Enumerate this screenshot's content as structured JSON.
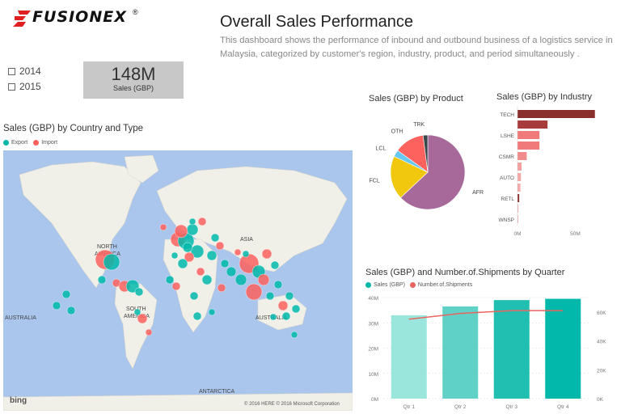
{
  "brand": {
    "name": "FUSIONEX",
    "reg": "®"
  },
  "header": {
    "title": "Overall Sales Performance",
    "subtitle": "This dashboard shows the performance of inbound and outbound business of a logistics service in Malaysia, categorized by customer's region, industry, product, and period simultaneously ."
  },
  "slicer": {
    "items": [
      "2014",
      "2015"
    ]
  },
  "kpi": {
    "value": "148M",
    "label": "Sales (GBP)"
  },
  "map": {
    "title": "Sales (GBP) by Country and Type",
    "legend": [
      {
        "name": "Export",
        "color": "#01b8aa"
      },
      {
        "name": "Import",
        "color": "#fd625e"
      }
    ],
    "labels": {
      "north_america": [
        "NORTH",
        "AMERICA"
      ],
      "south_america": [
        "SOUTH",
        "AMERICA"
      ],
      "asia": "ASIA",
      "australia_left": "AUSTRALIA",
      "australia_right": "AUSTRALIA",
      "antarctica": "ANTARCTICA"
    },
    "attribution": "© 2016 HERE   © 2016 Microsoft Corporation",
    "bing": "bing",
    "colors": {
      "water": "#aac6ec",
      "land": "#f0efe8",
      "export": "#01b8aa",
      "import": "#fd625e"
    }
  },
  "chart_data": [
    {
      "type": "pie",
      "title": "Sales (GBP) by Product",
      "categories": [
        "AFR",
        "FCL",
        "LCL",
        "OTH",
        "TRK"
      ],
      "values": [
        63,
        19,
        3,
        13,
        2
      ],
      "colors": [
        "#a66999",
        "#f2c80f",
        "#67c8f0",
        "#fd625e",
        "#374649"
      ]
    },
    {
      "type": "bar",
      "orientation": "horizontal",
      "title": "Sales (GBP) by Industry",
      "categories": [
        "TECH",
        "",
        "LSHE",
        "",
        "CSMR",
        "",
        "AUTO",
        "",
        "RETL",
        "",
        "WNSP"
      ],
      "values": [
        67,
        26,
        19,
        19,
        8,
        3.5,
        3,
        2.5,
        1.5,
        0.8,
        0.4
      ],
      "colors": [
        "#8b2e2e",
        "#a83b3b",
        "#f07a7a",
        "#f07a7a",
        "#f08c8c",
        "#f4a0a0",
        "#f4a8a8",
        "#f4a8a8",
        "#8b2e2e",
        "#f4b0b0",
        "#f4b8b8"
      ],
      "x_ticks": [
        "0M",
        "50M"
      ],
      "xlim": [
        0,
        70
      ]
    },
    {
      "type": "bar",
      "title": "Sales (GBP) and Number.of.Shipments by Quarter",
      "legend": [
        "Sales (GBP)",
        "Number.of.Shipments"
      ],
      "categories": [
        "Qtr 1",
        "Qtr 2",
        "Qtr 3",
        "Qtr 4"
      ],
      "series": [
        {
          "name": "Sales (GBP)",
          "values": [
            33,
            36.5,
            39,
            39.5
          ],
          "colors": [
            "#9ae5dc",
            "#5fd1c6",
            "#20bfb2",
            "#01b8aa"
          ]
        },
        {
          "name": "Number.of.Shipments",
          "type": "line",
          "color": "#e8665f",
          "values": [
            55,
            59,
            61,
            61
          ]
        }
      ],
      "y_ticks": [
        "0M",
        "10M",
        "20M",
        "30M",
        "40M"
      ],
      "y2_ticks": [
        "0K",
        "20K",
        "40K",
        "60K"
      ],
      "ylim": [
        0,
        40
      ],
      "y2lim": [
        0,
        70
      ]
    }
  ]
}
